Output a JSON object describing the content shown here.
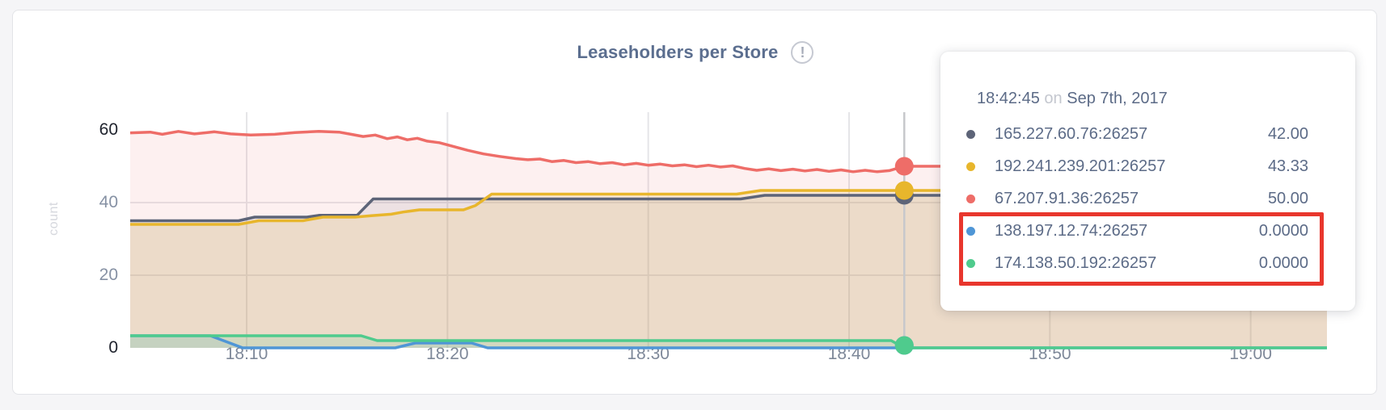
{
  "header": {
    "title": "Leaseholders per Store",
    "info_icon_glyph": "!"
  },
  "axis": {
    "ylabel": "count",
    "y_dark_color": "#20242e",
    "y_gray_color": "#8691a4",
    "x_color": "#7e8899"
  },
  "chart_data": {
    "type": "area",
    "title": "Leaseholders per Store",
    "xlabel": "",
    "ylabel": "count",
    "ylim": [
      0,
      60
    ],
    "y_ticks": [
      0,
      20,
      40,
      60
    ],
    "y_gridlines": [
      20,
      40
    ],
    "grid": true,
    "x_domain_minutes_after_1800": [
      4.2,
      63.8
    ],
    "x_ticks": [
      "18:10",
      "18:20",
      "18:30",
      "18:40",
      "18:50",
      "19:00"
    ],
    "x_tick_minutes": [
      10,
      20,
      30,
      40,
      50,
      60
    ],
    "hover_minute": 42.75,
    "hover_time": "18:42:45",
    "crosshair_color": "#c7c8cb",
    "series": [
      {
        "name": "67.207.91.36:26257",
        "color": "#ee6d68",
        "fill": "rgba(238,109,104,0.10)",
        "hover_value": 50.0,
        "points": [
          [
            4.2,
            59.2
          ],
          [
            5.2,
            59.4
          ],
          [
            5.8,
            58.8
          ],
          [
            6.6,
            59.6
          ],
          [
            7.4,
            58.9
          ],
          [
            8.4,
            59.5
          ],
          [
            9.2,
            58.9
          ],
          [
            10.2,
            58.6
          ],
          [
            11.4,
            58.8
          ],
          [
            12.4,
            59.3
          ],
          [
            13.6,
            59.6
          ],
          [
            14.6,
            59.4
          ],
          [
            15.2,
            58.8
          ],
          [
            15.8,
            58.2
          ],
          [
            16.4,
            58.6
          ],
          [
            17,
            57.6
          ],
          [
            17.5,
            58.1
          ],
          [
            18,
            57.3
          ],
          [
            18.5,
            57.7
          ],
          [
            19,
            56.9
          ],
          [
            19.6,
            56.5
          ],
          [
            20.2,
            55.6
          ],
          [
            21,
            54.4
          ],
          [
            21.8,
            53.4
          ],
          [
            22.6,
            52.7
          ],
          [
            23.4,
            52.1
          ],
          [
            24,
            51.8
          ],
          [
            24.6,
            52
          ],
          [
            25.2,
            51.3
          ],
          [
            25.8,
            51.6
          ],
          [
            26.4,
            51
          ],
          [
            27,
            51.3
          ],
          [
            27.6,
            50.7
          ],
          [
            28.2,
            51
          ],
          [
            28.8,
            50.4
          ],
          [
            29.4,
            50.8
          ],
          [
            30,
            50.3
          ],
          [
            30.6,
            50.6
          ],
          [
            31.2,
            50.1
          ],
          [
            31.8,
            50.4
          ],
          [
            32.4,
            49.9
          ],
          [
            33,
            50.3
          ],
          [
            33.6,
            49.8
          ],
          [
            34.2,
            50.1
          ],
          [
            34.8,
            49.4
          ],
          [
            35.4,
            48.9
          ],
          [
            36,
            49.3
          ],
          [
            36.6,
            48.8
          ],
          [
            37.2,
            49.2
          ],
          [
            37.8,
            48.7
          ],
          [
            38.4,
            49.1
          ],
          [
            39,
            48.6
          ],
          [
            39.6,
            49
          ],
          [
            40.2,
            48.5
          ],
          [
            40.8,
            48.9
          ],
          [
            41.4,
            48.5
          ],
          [
            42,
            48.8
          ],
          [
            42.75,
            50
          ],
          [
            63.8,
            50
          ]
        ]
      },
      {
        "name": "165.227.60.76:26257",
        "color": "#5d6478",
        "fill": "rgba(94,100,118,0.10)",
        "hover_value": 42.0,
        "points": [
          [
            4.2,
            35
          ],
          [
            9.6,
            35
          ],
          [
            10.4,
            36
          ],
          [
            13,
            36
          ],
          [
            13.6,
            36.5
          ],
          [
            15.5,
            36.5
          ],
          [
            16.3,
            41
          ],
          [
            34.6,
            41
          ],
          [
            35.8,
            42
          ],
          [
            63.8,
            42
          ]
        ]
      },
      {
        "name": "192.241.239.201:26257",
        "color": "#e8b62c",
        "fill": "rgba(232,182,44,0.14)",
        "hover_value": 43.33,
        "points": [
          [
            4.2,
            34
          ],
          [
            9.6,
            34
          ],
          [
            10.6,
            35
          ],
          [
            12.8,
            35
          ],
          [
            13.8,
            36
          ],
          [
            15.4,
            36
          ],
          [
            16.2,
            36.4
          ],
          [
            17.2,
            36.8
          ],
          [
            17.8,
            37.4
          ],
          [
            18.6,
            38
          ],
          [
            20.8,
            38
          ],
          [
            21.4,
            39.2
          ],
          [
            22.2,
            42.33
          ],
          [
            34.4,
            42.33
          ],
          [
            35.6,
            43.33
          ],
          [
            63.8,
            43.33
          ]
        ]
      },
      {
        "name": "138.197.12.74:26257",
        "color": "#4f96d6",
        "fill": "rgba(79,150,214,0.10)",
        "hover_value": 0.0,
        "points": [
          [
            4.2,
            3.33
          ],
          [
            8.2,
            3.33
          ],
          [
            9.8,
            0
          ],
          [
            17.4,
            0
          ],
          [
            18.4,
            1.33
          ],
          [
            21.2,
            1.33
          ],
          [
            22,
            0
          ],
          [
            63.8,
            0
          ]
        ]
      },
      {
        "name": "174.138.50.192:26257",
        "color": "#4fcb8d",
        "fill": "rgba(79,203,141,0.16)",
        "hover_value": 0.0,
        "points": [
          [
            4.2,
            3.33
          ],
          [
            15.7,
            3.33
          ],
          [
            16.5,
            2
          ],
          [
            42.1,
            2
          ],
          [
            42.75,
            0
          ],
          [
            63.8,
            0
          ]
        ]
      }
    ]
  },
  "tooltip": {
    "time": "18:42:45",
    "on_word": "on",
    "date": "Sep 7th, 2017",
    "rows": [
      {
        "label": "165.227.60.76:26257",
        "value": "42.00",
        "color": "#5d6478"
      },
      {
        "label": "192.241.239.201:26257",
        "value": "43.33",
        "color": "#e8b62c"
      },
      {
        "label": "67.207.91.36:26257",
        "value": "50.00",
        "color": "#ee6d68"
      },
      {
        "label": "138.197.12.74:26257",
        "value": "0.0000",
        "color": "#4f96d6"
      },
      {
        "label": "174.138.50.192:26257",
        "value": "0.0000",
        "color": "#4fcb8d"
      }
    ],
    "highlight_color": "#e8362d",
    "highlighted_rows": [
      3,
      4
    ]
  }
}
